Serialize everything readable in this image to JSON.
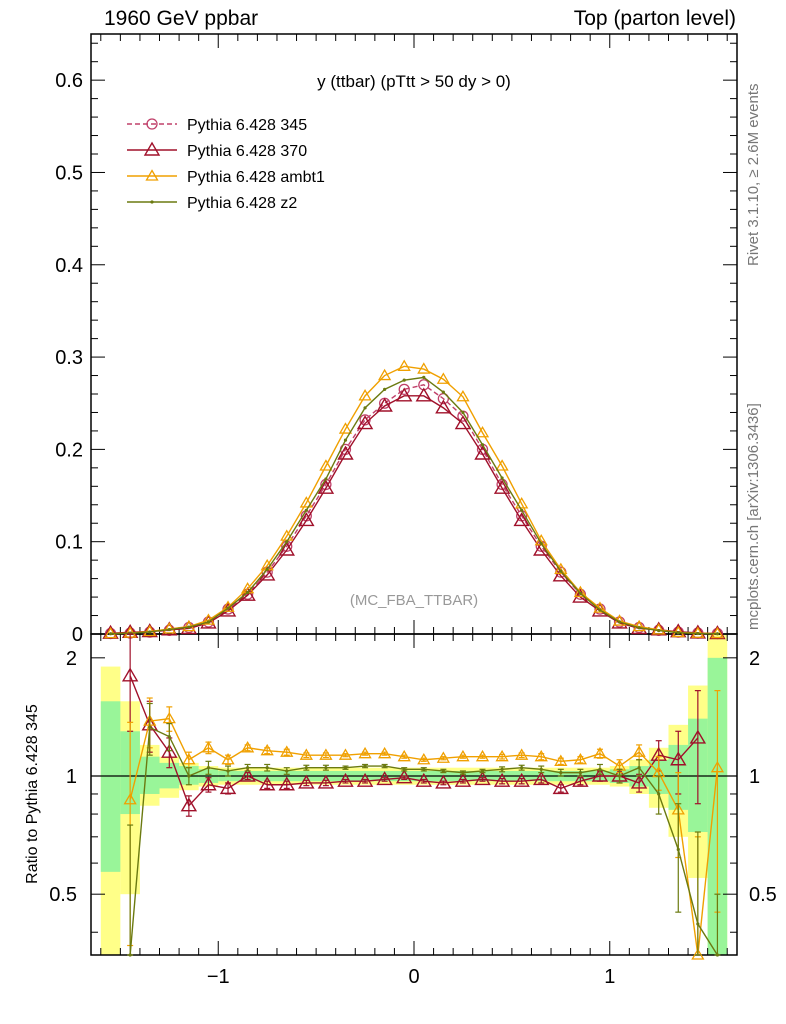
{
  "header": {
    "left": "1960 GeV ppbar",
    "right": "Top (parton level)"
  },
  "side_labels": {
    "rivet": "Rivet 3.1.10, ≥ 2.6M events",
    "mcplots": "mcplots.cern.ch [arXiv:1306.3436]"
  },
  "colors": {
    "p345": "#c0406a",
    "p370": "#a0102a",
    "ambt1": "#f0a000",
    "z2": "#6b7a10",
    "band_inner": "#99f599",
    "band_outer": "#ffff88"
  },
  "chart_data": [
    {
      "type": "line",
      "title": "y (ttbar) (pTtt > 50 dy > 0)",
      "watermark": "(MC_FBA_TTBAR)",
      "xlim": [
        -1.65,
        1.65
      ],
      "ylim": [
        0,
        0.65
      ],
      "yticks": [
        0,
        0.1,
        0.2,
        0.3,
        0.4,
        0.5,
        0.6
      ],
      "xticks": [
        -1,
        0,
        1
      ],
      "legend_position": "top-left",
      "x": [
        -1.55,
        -1.45,
        -1.35,
        -1.25,
        -1.15,
        -1.05,
        -0.95,
        -0.85,
        -0.75,
        -0.65,
        -0.55,
        -0.45,
        -0.35,
        -0.25,
        -0.15,
        -0.05,
        0.05,
        0.15,
        0.25,
        0.35,
        0.45,
        0.55,
        0.65,
        0.75,
        0.85,
        0.95,
        1.05,
        1.15,
        1.25,
        1.35,
        1.45,
        1.55
      ],
      "series": [
        {
          "name": "Pythia 6.428 345",
          "key": "p345",
          "marker": "circle",
          "dash": true,
          "values": [
            0.0005,
            0.001,
            0.002,
            0.004,
            0.007,
            0.013,
            0.027,
            0.043,
            0.067,
            0.095,
            0.128,
            0.162,
            0.2,
            0.232,
            0.25,
            0.265,
            0.27,
            0.255,
            0.236,
            0.2,
            0.162,
            0.128,
            0.095,
            0.067,
            0.043,
            0.027,
            0.013,
            0.007,
            0.004,
            0.002,
            0.001,
            0.0005
          ]
        },
        {
          "name": "Pythia 6.428 370",
          "key": "p370",
          "marker": "triangle",
          "dash": false,
          "values": [
            0.0009,
            0.0018,
            0.0027,
            0.0046,
            0.006,
            0.012,
            0.025,
            0.042,
            0.064,
            0.091,
            0.123,
            0.158,
            0.195,
            0.228,
            0.247,
            0.258,
            0.258,
            0.245,
            0.228,
            0.195,
            0.158,
            0.123,
            0.091,
            0.063,
            0.04,
            0.025,
            0.012,
            0.006,
            0.0045,
            0.0025,
            0.0012,
            0.0005
          ]
        },
        {
          "name": "Pythia 6.428 ambt1",
          "key": "ambt1",
          "marker": "triangle-small",
          "dash": false,
          "values": [
            0.0004,
            0.001,
            0.0027,
            0.0055,
            0.008,
            0.015,
            0.029,
            0.049,
            0.074,
            0.106,
            0.142,
            0.182,
            0.222,
            0.258,
            0.28,
            0.29,
            0.287,
            0.276,
            0.257,
            0.218,
            0.182,
            0.141,
            0.101,
            0.07,
            0.045,
            0.028,
            0.014,
            0.008,
            0.0045,
            0.0017,
            0.0008,
            0.0005
          ]
        },
        {
          "name": "Pythia 6.428 z2",
          "key": "z2",
          "marker": "dot",
          "dash": false,
          "values": [
            0.0003,
            0.0008,
            0.0022,
            0.0048,
            0.0075,
            0.013,
            0.028,
            0.045,
            0.07,
            0.1,
            0.134,
            0.168,
            0.21,
            0.245,
            0.265,
            0.275,
            0.278,
            0.262,
            0.24,
            0.205,
            0.169,
            0.134,
            0.098,
            0.068,
            0.044,
            0.026,
            0.013,
            0.0068,
            0.0037,
            0.0014,
            0.0005,
            0.0003
          ]
        }
      ]
    },
    {
      "type": "line",
      "ylabel": "Ratio to Pythia 6.428 345",
      "xlim": [
        -1.65,
        1.65
      ],
      "ylim": [
        0.35,
        2.3
      ],
      "yticks": [
        0.5,
        1,
        2
      ],
      "xticks": [
        -1,
        0,
        1
      ],
      "x": [
        -1.45,
        -1.35,
        -1.25,
        -1.15,
        -1.05,
        -0.95,
        -0.85,
        -0.75,
        -0.65,
        -0.55,
        -0.45,
        -0.35,
        -0.25,
        -0.15,
        -0.05,
        0.05,
        0.15,
        0.25,
        0.35,
        0.45,
        0.55,
        0.65,
        0.75,
        0.85,
        0.95,
        1.05,
        1.15,
        1.25,
        1.35,
        1.45,
        1.55
      ],
      "band_x": [
        -1.6,
        -1.5,
        -1.4,
        -1.3,
        -1.2,
        -1.1,
        -1.0,
        1.0,
        1.1,
        1.2,
        1.3,
        1.4,
        1.5,
        1.6
      ],
      "band_inner": [
        [
          0.57,
          1.55
        ],
        [
          0.8,
          1.3
        ],
        [
          0.9,
          1.12
        ],
        [
          0.93,
          1.08
        ],
        [
          0.95,
          1.06
        ],
        [
          0.96,
          1.04
        ],
        [
          0.97,
          1.03
        ],
        [
          0.96,
          1.04
        ],
        [
          0.94,
          1.06
        ],
        [
          0.9,
          1.1
        ],
        [
          0.82,
          1.2
        ],
        [
          0.72,
          1.4
        ],
        [
          0.35,
          2.0
        ]
      ],
      "band_outer": [
        [
          0.35,
          1.9
        ],
        [
          0.5,
          1.55
        ],
        [
          0.84,
          1.2
        ],
        [
          0.88,
          1.12
        ],
        [
          0.92,
          1.08
        ],
        [
          0.94,
          1.06
        ],
        [
          0.95,
          1.05
        ],
        [
          0.94,
          1.06
        ],
        [
          0.9,
          1.1
        ],
        [
          0.83,
          1.18
        ],
        [
          0.7,
          1.35
        ],
        [
          0.55,
          1.7
        ],
        [
          0.35,
          2.3
        ]
      ],
      "series": [
        {
          "key": "p370",
          "marker": "triangle",
          "values": [
            1.8,
            1.35,
            1.15,
            0.84,
            0.95,
            0.93,
            1.0,
            0.95,
            0.95,
            0.96,
            0.96,
            0.97,
            0.97,
            0.98,
            0.99,
            0.97,
            0.96,
            0.97,
            0.98,
            0.97,
            0.97,
            0.98,
            0.93,
            0.97,
            1.0,
            1.0,
            0.96,
            1.13,
            1.1,
            1.25,
            null
          ],
          "err": [
            0.5,
            0.2,
            0.1,
            0.05,
            0.04,
            0.03,
            0.02,
            0.02,
            0.02,
            0.015,
            0.015,
            0.01,
            0.01,
            0.01,
            0.01,
            0.01,
            0.01,
            0.01,
            0.01,
            0.015,
            0.015,
            0.02,
            0.02,
            0.02,
            0.03,
            0.04,
            0.05,
            0.1,
            0.2,
            0.4,
            0
          ]
        },
        {
          "key": "ambt1",
          "marker": "triangle-small",
          "values": [
            0.87,
            1.38,
            1.4,
            1.1,
            1.18,
            1.1,
            1.18,
            1.16,
            1.15,
            1.13,
            1.13,
            1.13,
            1.14,
            1.14,
            1.12,
            1.1,
            1.11,
            1.12,
            1.12,
            1.12,
            1.13,
            1.12,
            1.09,
            1.1,
            1.14,
            1.06,
            1.15,
            1.02,
            0.82,
            0.3,
            1.05
          ],
          "err": [
            0.5,
            0.2,
            0.1,
            0.05,
            0.04,
            0.03,
            0.02,
            0.02,
            0.02,
            0.015,
            0.015,
            0.01,
            0.01,
            0.01,
            0.01,
            0.01,
            0.01,
            0.01,
            0.01,
            0.015,
            0.015,
            0.02,
            0.02,
            0.02,
            0.03,
            0.04,
            0.05,
            0.1,
            0.2,
            0.4,
            0.6
          ]
        },
        {
          "key": "z2",
          "marker": "dot",
          "values": [
            0.35,
            1.33,
            1.26,
            1.0,
            1.05,
            1.03,
            1.05,
            1.05,
            1.03,
            1.05,
            1.05,
            1.05,
            1.06,
            1.06,
            1.04,
            1.04,
            1.03,
            1.02,
            1.03,
            1.04,
            1.05,
            1.04,
            1.02,
            1.02,
            1.04,
            1.0,
            1.05,
            0.9,
            0.65,
            0.42,
            0.3
          ],
          "err": [
            0.4,
            0.2,
            0.1,
            0.05,
            0.04,
            0.03,
            0.02,
            0.02,
            0.02,
            0.015,
            0.015,
            0.01,
            0.01,
            0.01,
            0.01,
            0.01,
            0.01,
            0.01,
            0.01,
            0.015,
            0.015,
            0.02,
            0.02,
            0.02,
            0.03,
            0.04,
            0.05,
            0.1,
            0.2,
            0.3,
            0.2
          ]
        }
      ]
    }
  ]
}
